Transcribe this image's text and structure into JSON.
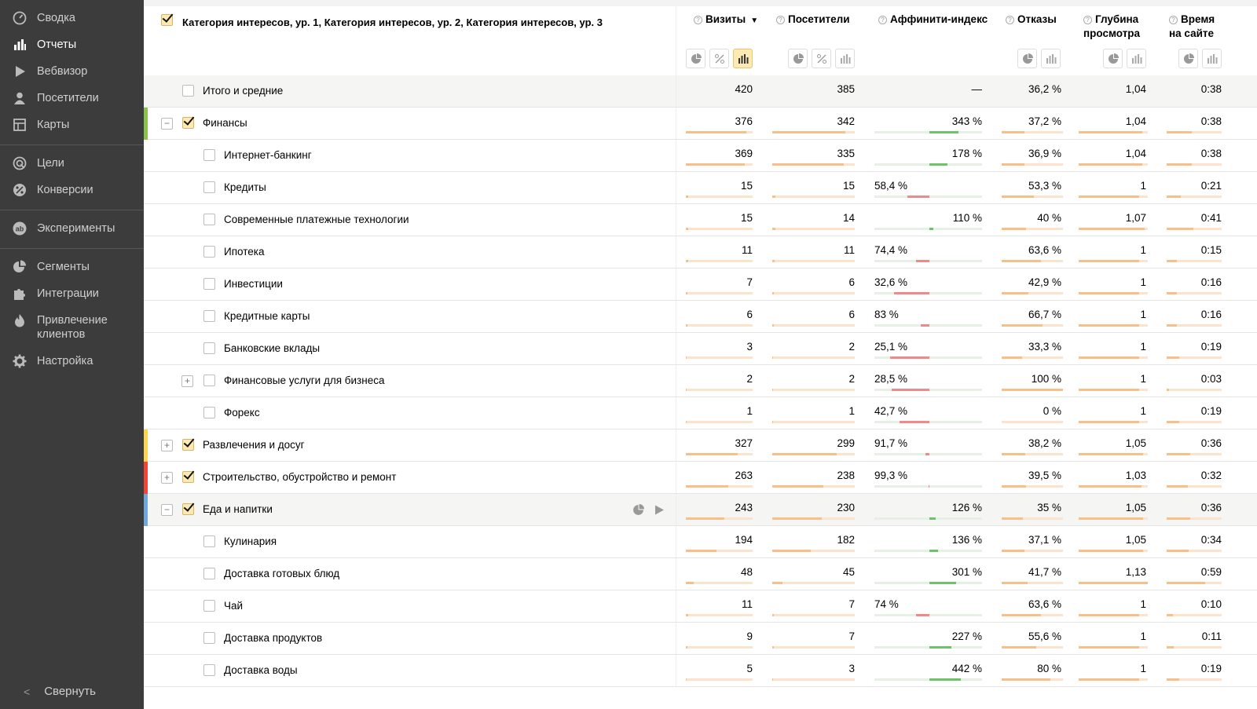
{
  "sidebar": {
    "groups": [
      [
        {
          "label": "Сводка",
          "icon": "gauge-icon"
        },
        {
          "label": "Отчеты",
          "icon": "bar-chart-icon",
          "active": true
        },
        {
          "label": "Вебвизор",
          "icon": "play-icon"
        },
        {
          "label": "Посетители",
          "icon": "person-icon"
        },
        {
          "label": "Карты",
          "icon": "map-icon"
        }
      ],
      [
        {
          "label": "Цели",
          "icon": "target-icon"
        },
        {
          "label": "Конверсии",
          "icon": "percent-icon"
        }
      ],
      [
        {
          "label": "Эксперименты",
          "icon": "ab-icon"
        }
      ],
      [
        {
          "label": "Сегменты",
          "icon": "pie-icon"
        },
        {
          "label": "Интеграции",
          "icon": "puzzle-icon"
        },
        {
          "label": "Привлечение клиентов",
          "icon": "flame-icon"
        },
        {
          "label": "Настройка",
          "icon": "gear-icon"
        }
      ]
    ],
    "collapse_label": "Свернуть"
  },
  "table": {
    "dimension_title": "Категория интересов, ур. 1, Категория интересов, ур. 2, Категория интересов, ур. 3",
    "columns": {
      "visits": "Визиты",
      "visitors": "Посетители",
      "affinity": "Аффинити-индекс",
      "bounces": "Отказы",
      "depth_1": "Глубина",
      "depth_2": "просмотра",
      "time_1": "Время",
      "time_2": "на сайте"
    },
    "sort_indicator": "▼",
    "colors": {
      "stripe_finance": "#8bc34a",
      "stripe_ent": "#ffd54f",
      "stripe_build": "#f44336",
      "stripe_food": "#6fa8dc",
      "aff_pos": "#6cc36a",
      "aff_neg": "#ef8a8a"
    },
    "rows": [
      {
        "label": "Итого и средние",
        "type": "total",
        "visits": "420",
        "visitors": "385",
        "affinity": "—",
        "bounces": "36,2 %",
        "depth": "1,04",
        "time": "0:38"
      },
      {
        "label": "Финансы",
        "type": "l1",
        "toggle": "−",
        "checked": true,
        "stripe": "#8bc34a",
        "visits": "376",
        "visitors": "342",
        "affinity": "343 %",
        "aff_pos": true,
        "aff_v": 0.55,
        "bounces": "37,2 %",
        "depth": "1,04",
        "time": "0:38",
        "vb": 0.9,
        "vsb": 0.89,
        "bb": 0.37,
        "db": 0.92,
        "tb": 0.45
      },
      {
        "label": "Интернет-банкинг",
        "type": "l2",
        "visits": "369",
        "visitors": "335",
        "affinity": "178 %",
        "aff_pos": true,
        "aff_v": 0.35,
        "bounces": "36,9 %",
        "depth": "1,04",
        "time": "0:38",
        "vb": 0.88,
        "vsb": 0.87,
        "bb": 0.37,
        "db": 0.92,
        "tb": 0.45
      },
      {
        "label": "Кредиты",
        "type": "l2",
        "visits": "15",
        "visitors": "15",
        "affinity": "58,4 %",
        "aff_pos": false,
        "aff_v": 0.42,
        "bounces": "53,3 %",
        "depth": "1",
        "time": "0:21",
        "vb": 0.04,
        "vsb": 0.04,
        "bb": 0.53,
        "db": 0.88,
        "tb": 0.25
      },
      {
        "label": "Современные платежные технологии",
        "type": "l2",
        "visits": "15",
        "visitors": "14",
        "affinity": "110 %",
        "aff_pos": true,
        "aff_v": 0.08,
        "bounces": "40 %",
        "depth": "1,07",
        "time": "0:41",
        "vb": 0.04,
        "vsb": 0.04,
        "bb": 0.4,
        "db": 0.95,
        "tb": 0.49
      },
      {
        "label": "Ипотека",
        "type": "l2",
        "visits": "11",
        "visitors": "11",
        "affinity": "74,4 %",
        "aff_pos": false,
        "aff_v": 0.26,
        "bounces": "63,6 %",
        "depth": "1",
        "time": "0:15",
        "vb": 0.03,
        "vsb": 0.03,
        "bb": 0.64,
        "db": 0.88,
        "tb": 0.18
      },
      {
        "label": "Инвестиции",
        "type": "l2",
        "visits": "7",
        "visitors": "6",
        "affinity": "32,6 %",
        "aff_pos": false,
        "aff_v": 0.67,
        "bounces": "42,9 %",
        "depth": "1",
        "time": "0:16",
        "vb": 0.02,
        "vsb": 0.02,
        "bb": 0.43,
        "db": 0.88,
        "tb": 0.19
      },
      {
        "label": "Кредитные карты",
        "type": "l2",
        "visits": "6",
        "visitors": "6",
        "affinity": "83 %",
        "aff_pos": false,
        "aff_v": 0.17,
        "bounces": "66,7 %",
        "depth": "1",
        "time": "0:16",
        "vb": 0.02,
        "vsb": 0.02,
        "bb": 0.67,
        "db": 0.88,
        "tb": 0.19
      },
      {
        "label": "Банковские вклады",
        "type": "l2",
        "visits": "3",
        "visitors": "2",
        "affinity": "25,1 %",
        "aff_pos": false,
        "aff_v": 0.75,
        "bounces": "33,3 %",
        "depth": "1",
        "time": "0:19",
        "vb": 0.01,
        "vsb": 0.01,
        "bb": 0.33,
        "db": 0.88,
        "tb": 0.23
      },
      {
        "label": "Финансовые услуги для бизнеса",
        "type": "l2",
        "toggle": "+",
        "visits": "2",
        "visitors": "2",
        "affinity": "28,5 %",
        "aff_pos": false,
        "aff_v": 0.72,
        "bounces": "100 %",
        "depth": "1",
        "time": "0:03",
        "vb": 0.01,
        "vsb": 0.01,
        "bb": 1.0,
        "db": 0.88,
        "tb": 0.04
      },
      {
        "label": "Форекс",
        "type": "l2",
        "visits": "1",
        "visitors": "1",
        "affinity": "42,7 %",
        "aff_pos": false,
        "aff_v": 0.57,
        "bounces": "0 %",
        "depth": "1",
        "time": "0:19",
        "vb": 0.01,
        "vsb": 0.01,
        "bb": 0.0,
        "db": 0.88,
        "tb": 0.23
      },
      {
        "label": "Развлечения и досуг",
        "type": "l1",
        "toggle": "+",
        "checked": true,
        "stripe": "#ffd54f",
        "visits": "327",
        "visitors": "299",
        "affinity": "91,7 %",
        "aff_pos": false,
        "aff_v": 0.08,
        "bounces": "38,2 %",
        "depth": "1,05",
        "time": "0:36",
        "vb": 0.78,
        "vsb": 0.78,
        "bb": 0.38,
        "db": 0.93,
        "tb": 0.43
      },
      {
        "label": "Строительство, обустройство и ремонт",
        "type": "l1",
        "toggle": "+",
        "checked": true,
        "stripe": "#f44336",
        "visits": "263",
        "visitors": "238",
        "affinity": "99,3 %",
        "aff_pos": false,
        "aff_v": 0.01,
        "bounces": "39,5 %",
        "depth": "1,03",
        "time": "0:32",
        "vb": 0.63,
        "vsb": 0.62,
        "bb": 0.4,
        "db": 0.91,
        "tb": 0.38
      },
      {
        "label": "Еда и напитки",
        "type": "l1",
        "toggle": "−",
        "checked": true,
        "stripe": "#6fa8dc",
        "hl": true,
        "visits": "243",
        "visitors": "230",
        "affinity": "126 %",
        "aff_pos": true,
        "aff_v": 0.12,
        "bounces": "35 %",
        "depth": "1,05",
        "time": "0:36",
        "vb": 0.58,
        "vsb": 0.6,
        "bb": 0.35,
        "db": 0.93,
        "tb": 0.43
      },
      {
        "label": "Кулинария",
        "type": "l2",
        "visits": "194",
        "visitors": "182",
        "affinity": "136 %",
        "aff_pos": true,
        "aff_v": 0.16,
        "bounces": "37,1 %",
        "depth": "1,05",
        "time": "0:34",
        "vb": 0.46,
        "vsb": 0.47,
        "bb": 0.37,
        "db": 0.93,
        "tb": 0.4
      },
      {
        "label": "Доставка готовых блюд",
        "type": "l2",
        "visits": "48",
        "visitors": "45",
        "affinity": "301 %",
        "aff_pos": true,
        "aff_v": 0.5,
        "bounces": "41,7 %",
        "depth": "1,13",
        "time": "0:59",
        "vb": 0.12,
        "vsb": 0.12,
        "bb": 0.42,
        "db": 1.0,
        "tb": 0.7
      },
      {
        "label": "Чай",
        "type": "l2",
        "visits": "11",
        "visitors": "7",
        "affinity": "74 %",
        "aff_pos": false,
        "aff_v": 0.26,
        "bounces": "63,6 %",
        "depth": "1",
        "time": "0:10",
        "vb": 0.03,
        "vsb": 0.02,
        "bb": 0.64,
        "db": 0.88,
        "tb": 0.12
      },
      {
        "label": "Доставка продуктов",
        "type": "l2",
        "visits": "9",
        "visitors": "7",
        "affinity": "227 %",
        "aff_pos": true,
        "aff_v": 0.42,
        "bounces": "55,6 %",
        "depth": "1",
        "time": "0:11",
        "vb": 0.02,
        "vsb": 0.02,
        "bb": 0.56,
        "db": 0.88,
        "tb": 0.13
      },
      {
        "label": "Доставка воды",
        "type": "l2",
        "visits": "5",
        "visitors": "3",
        "affinity": "442 %",
        "aff_pos": true,
        "aff_v": 0.6,
        "bounces": "80 %",
        "depth": "1",
        "time": "0:19",
        "vb": 0.01,
        "vsb": 0.01,
        "bb": 0.8,
        "db": 0.88,
        "tb": 0.23
      }
    ]
  }
}
